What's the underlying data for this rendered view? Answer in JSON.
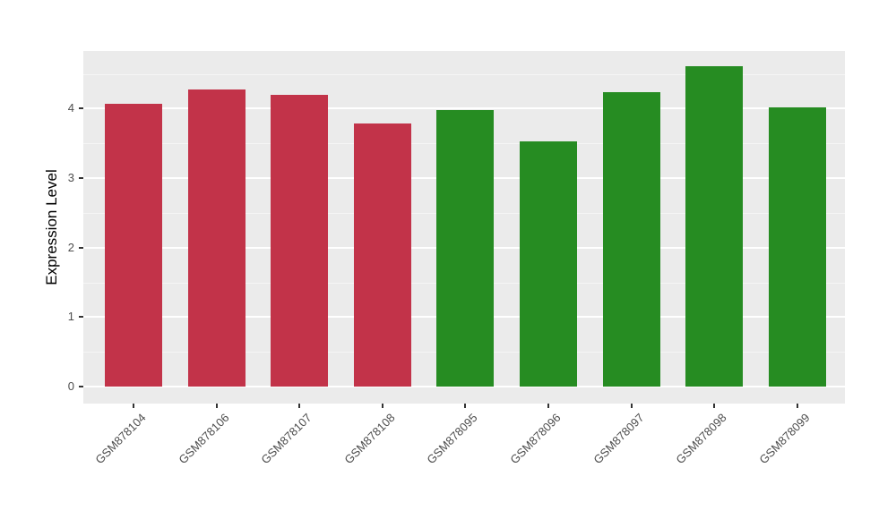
{
  "chart_data": {
    "type": "bar",
    "title": "",
    "xlabel": "",
    "ylabel": "Expression Level",
    "categories": [
      "GSM878104",
      "GSM878106",
      "GSM878107",
      "GSM878108",
      "GSM878095",
      "GSM878096",
      "GSM878097",
      "GSM878098",
      "GSM878099"
    ],
    "values": [
      4.07,
      4.27,
      4.2,
      3.79,
      3.98,
      3.53,
      4.23,
      4.61,
      4.02
    ],
    "bar_groups": [
      "groupA",
      "groupA",
      "groupA",
      "groupA",
      "groupB",
      "groupB",
      "groupB",
      "groupB",
      "groupB"
    ],
    "group_colors": {
      "groupA": "#C23349",
      "groupB": "#268C22"
    },
    "yticks": [
      0,
      1,
      2,
      3,
      4
    ],
    "minor_yticks": [
      0.5,
      1.5,
      2.5,
      3.5,
      4.5
    ],
    "ylim": [
      -0.23,
      4.84
    ],
    "grid": "major+minor white on grey panel",
    "legend": false,
    "panel_bg": "#EBEBEB",
    "tick_color": "#333333",
    "tick_label_color": "#4d4d4d"
  }
}
